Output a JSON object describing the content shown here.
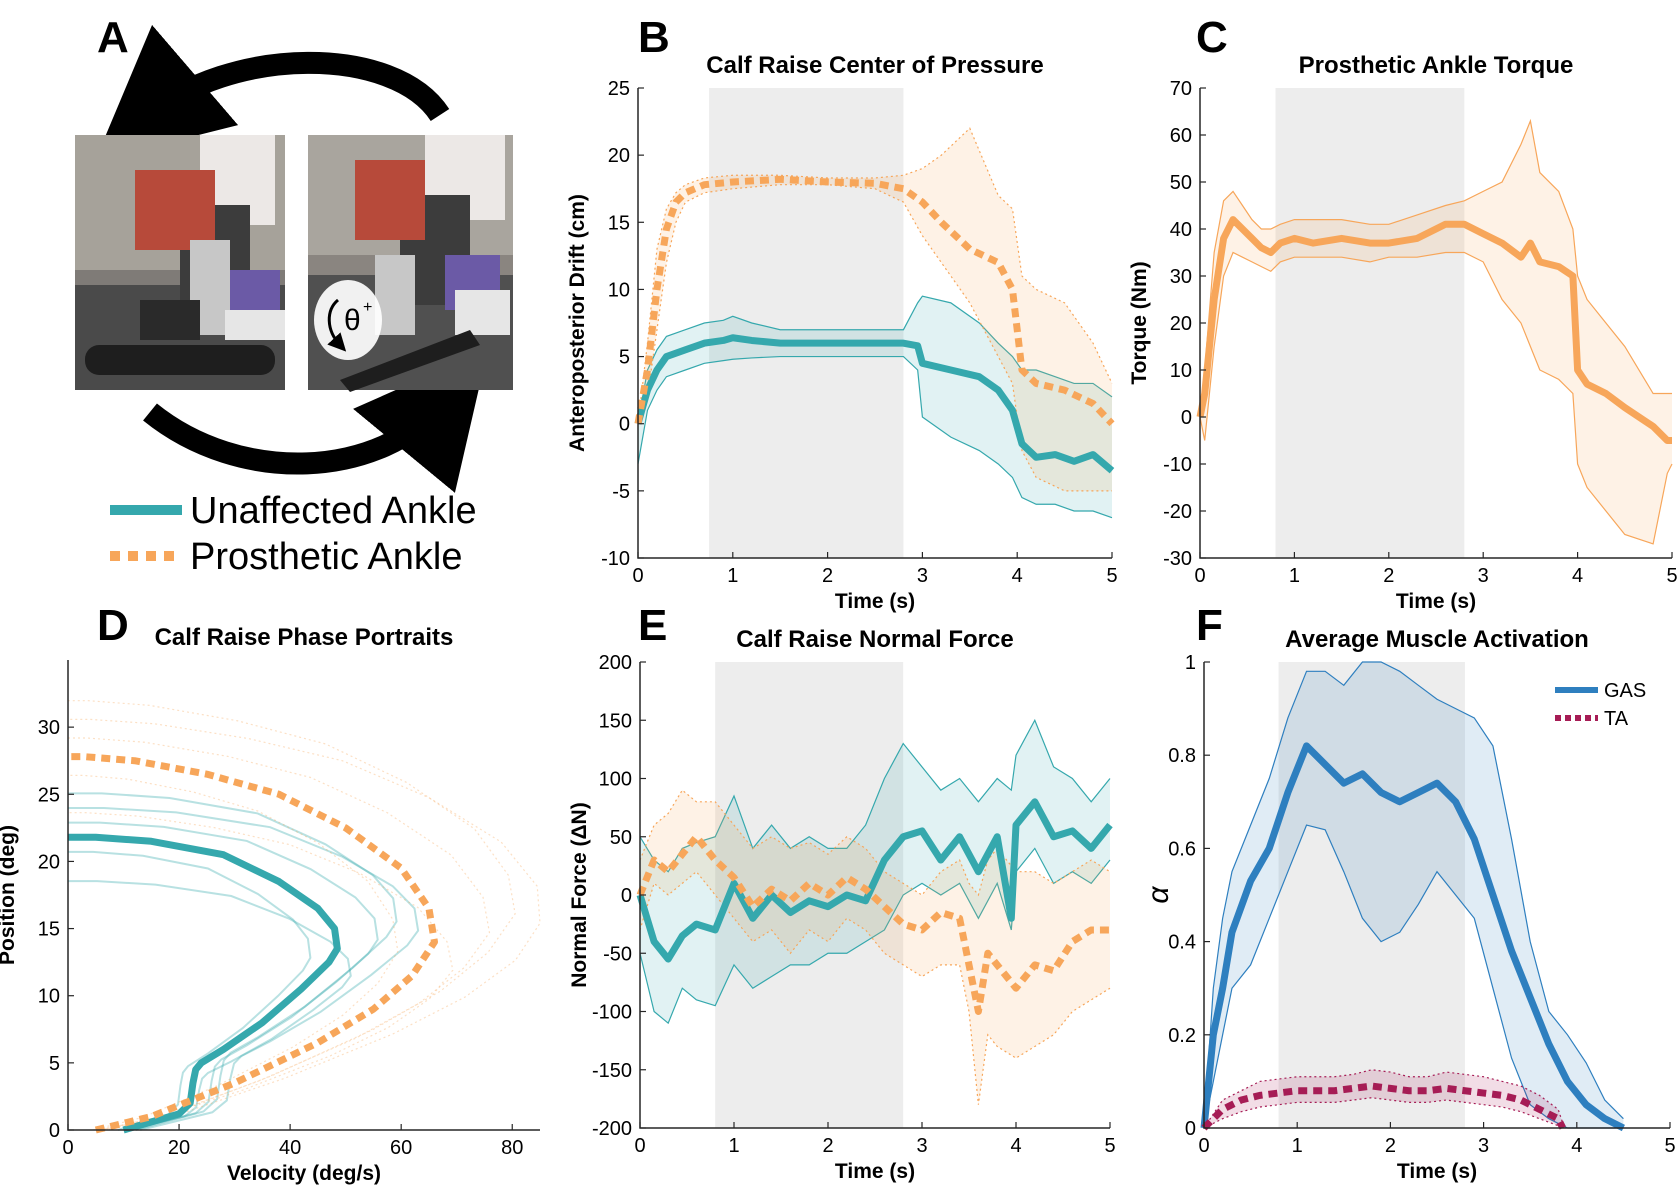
{
  "panels": {
    "A": {
      "letter": "A",
      "angle_label": "θ",
      "angle_sup": "+",
      "legend": [
        "Unaffected Ankle",
        "Prosthetic Ankle"
      ]
    },
    "B": {
      "letter": "B"
    },
    "C": {
      "letter": "C"
    },
    "D": {
      "letter": "D"
    },
    "E": {
      "letter": "E"
    },
    "F": {
      "letter": "F"
    }
  },
  "colors": {
    "unaffected": "#35a8ad",
    "prosthetic": "#f7a65a",
    "gas": "#2e7fbf",
    "ta": "#a61c55",
    "shade": "#ededed"
  },
  "chart_data": [
    {
      "id": "B",
      "type": "line",
      "title": "Calf Raise Center of Pressure",
      "xlabel": "Time (s)",
      "ylabel": "Anteroposterior Drift (cm)",
      "xlim": [
        0,
        5
      ],
      "ylim": [
        -10,
        25
      ],
      "xticks": [
        0,
        1,
        2,
        3,
        4,
        5
      ],
      "yticks": [
        -10,
        -5,
        0,
        5,
        10,
        15,
        20,
        25
      ],
      "shaded_x": [
        0.75,
        2.8
      ],
      "series": [
        {
          "key": "unaffected",
          "style": "solid",
          "x": [
            0,
            0.1,
            0.2,
            0.3,
            0.5,
            0.7,
            0.9,
            1.0,
            1.2,
            1.5,
            2.0,
            2.5,
            2.8,
            2.95,
            3.0,
            3.3,
            3.6,
            3.8,
            3.95,
            4.05,
            4.2,
            4.4,
            4.6,
            4.8,
            5.0
          ],
          "y": [
            0,
            2.5,
            4.0,
            5.0,
            5.5,
            6.0,
            6.2,
            6.4,
            6.2,
            6.0,
            6.0,
            6.0,
            6.0,
            5.8,
            4.5,
            4.0,
            3.5,
            2.5,
            1.0,
            -1.5,
            -2.5,
            -2.3,
            -2.8,
            -2.3,
            -3.5
          ],
          "upper": [
            0,
            4.0,
            5.5,
            6.5,
            7.0,
            7.5,
            7.7,
            8.0,
            7.5,
            7.0,
            7.0,
            7.0,
            7.0,
            9.0,
            9.5,
            9.0,
            7.5,
            6.0,
            5.0,
            4.0,
            4.0,
            3.5,
            3.0,
            3.0,
            2.0
          ],
          "lower": [
            -3,
            1.0,
            2.5,
            3.5,
            4.0,
            4.5,
            4.7,
            4.8,
            4.9,
            5.0,
            5.0,
            5.0,
            5.0,
            4.0,
            0.5,
            -1.0,
            -2.0,
            -3.0,
            -4.0,
            -5.5,
            -6.0,
            -6.0,
            -6.5,
            -6.5,
            -7.0
          ]
        },
        {
          "key": "prosthetic",
          "style": "dashed",
          "x": [
            0,
            0.1,
            0.2,
            0.3,
            0.4,
            0.5,
            0.7,
            1.0,
            1.5,
            2.0,
            2.5,
            2.8,
            3.0,
            3.2,
            3.5,
            3.8,
            3.95,
            4.05,
            4.2,
            4.5,
            4.8,
            5.0
          ],
          "y": [
            0,
            4.0,
            10.0,
            14.5,
            16.5,
            17.2,
            17.8,
            18.0,
            18.2,
            18.0,
            17.9,
            17.5,
            16.5,
            15.0,
            13.0,
            12.0,
            10.0,
            4.0,
            3.0,
            2.5,
            1.5,
            0
          ],
          "upper": [
            0,
            6.0,
            13.0,
            16.0,
            17.2,
            17.8,
            18.3,
            18.5,
            18.5,
            18.3,
            18.3,
            18.5,
            19.0,
            20.0,
            22.0,
            17.0,
            16.0,
            11.0,
            10.0,
            9.0,
            6.0,
            3.0
          ],
          "lower": [
            0,
            2.0,
            7.0,
            12.0,
            15.0,
            16.5,
            17.2,
            17.5,
            17.8,
            17.8,
            17.5,
            16.5,
            14.0,
            12.0,
            9.0,
            5.0,
            3.0,
            -2.0,
            -4.0,
            -5.0,
            -5.0,
            -5.0
          ]
        }
      ]
    },
    {
      "id": "C",
      "type": "line",
      "title": "Prosthetic Ankle Torque",
      "xlabel": "Time (s)",
      "ylabel": "Torque (Nm)",
      "xlim": [
        0,
        5
      ],
      "ylim": [
        -30,
        70
      ],
      "xticks": [
        0,
        1,
        2,
        3,
        4,
        5
      ],
      "yticks": [
        -30,
        -20,
        -10,
        0,
        10,
        20,
        30,
        40,
        50,
        60,
        70
      ],
      "shaded_x": [
        0.8,
        2.8
      ],
      "series": [
        {
          "key": "prosthetic",
          "style": "solid",
          "x": [
            0,
            0.05,
            0.15,
            0.25,
            0.35,
            0.45,
            0.55,
            0.65,
            0.75,
            0.85,
            1.0,
            1.2,
            1.5,
            1.8,
            2.0,
            2.3,
            2.6,
            2.8,
            3.0,
            3.2,
            3.4,
            3.5,
            3.6,
            3.8,
            3.95,
            4.0,
            4.1,
            4.3,
            4.5,
            4.8,
            4.95,
            5.0
          ],
          "y": [
            0,
            5,
            25,
            38,
            42,
            40,
            38,
            36,
            35,
            37,
            38,
            37,
            38,
            37,
            37,
            38,
            41,
            41,
            39,
            37,
            34,
            37,
            33,
            32,
            30,
            10,
            7,
            5,
            2,
            -2,
            -5,
            -5
          ],
          "upper": [
            0,
            10,
            35,
            46,
            48,
            45,
            42,
            40,
            40,
            41,
            42,
            42,
            42,
            41,
            41,
            43,
            45,
            46,
            48,
            50,
            58,
            63,
            52,
            48,
            40,
            30,
            25,
            20,
            15,
            5,
            5,
            5
          ],
          "lower": [
            0,
            -5,
            15,
            30,
            35,
            34,
            33,
            32,
            31,
            33,
            34,
            34,
            34,
            33,
            34,
            34,
            35,
            35,
            33,
            25,
            20,
            15,
            10,
            8,
            5,
            -10,
            -15,
            -20,
            -25,
            -27,
            -12,
            -10
          ]
        }
      ]
    },
    {
      "id": "D",
      "type": "line",
      "title": "Calf Raise Phase Portraits",
      "xlabel": "Velocity (deg/s)",
      "ylabel": "Position (deg)",
      "xlim": [
        0,
        85
      ],
      "ylim": [
        0,
        35
      ],
      "xticks": [
        0,
        20,
        40,
        60,
        80
      ],
      "yticks": [
        0,
        5,
        10,
        15,
        20,
        25,
        30
      ],
      "series": [
        {
          "key": "unaffected",
          "style": "solid",
          "x": [
            10,
            20,
            22,
            22.5,
            23,
            24,
            28,
            35,
            42,
            47,
            48.5,
            48,
            45,
            38,
            28,
            15,
            5,
            0
          ],
          "y": [
            0,
            1.2,
            2.0,
            3.5,
            4.5,
            5.0,
            6.0,
            8.0,
            10.5,
            12.5,
            13.5,
            15.0,
            16.5,
            18.5,
            20.5,
            21.5,
            21.8,
            21.8
          ]
        },
        {
          "key": "prosthetic",
          "style": "dashed",
          "x": [
            5,
            15,
            30,
            45,
            55,
            62,
            66,
            65,
            60,
            50,
            38,
            25,
            12,
            3,
            0
          ],
          "y": [
            0,
            1.0,
            3.5,
            6.5,
            9.0,
            11.5,
            14.0,
            16.5,
            19.5,
            22.5,
            25.0,
            26.5,
            27.5,
            27.8,
            27.8
          ]
        }
      ]
    },
    {
      "id": "E",
      "type": "line",
      "title": "Calf Raise Normal Force",
      "xlabel": "Time (s)",
      "ylabel": "Normal Force (ΔN)",
      "xlim": [
        0,
        5
      ],
      "ylim": [
        -200,
        200
      ],
      "xticks": [
        0,
        1,
        2,
        3,
        4,
        5
      ],
      "yticks": [
        -200,
        -150,
        -100,
        -50,
        0,
        50,
        100,
        150,
        200
      ],
      "shaded_x": [
        0.8,
        2.8
      ],
      "series": [
        {
          "key": "unaffected",
          "style": "solid",
          "x": [
            0,
            0.15,
            0.3,
            0.45,
            0.6,
            0.8,
            1.0,
            1.2,
            1.4,
            1.6,
            1.8,
            2.0,
            2.2,
            2.4,
            2.6,
            2.8,
            3.0,
            3.2,
            3.4,
            3.6,
            3.8,
            3.95,
            4.0,
            4.2,
            4.4,
            4.6,
            4.8,
            5.0
          ],
          "y": [
            0,
            -40,
            -55,
            -35,
            -25,
            -30,
            10,
            -20,
            0,
            -15,
            -5,
            -10,
            0,
            -5,
            30,
            50,
            55,
            30,
            50,
            20,
            50,
            -20,
            60,
            80,
            50,
            55,
            40,
            60
          ],
          "upper": [
            50,
            30,
            20,
            40,
            45,
            50,
            85,
            40,
            60,
            40,
            50,
            40,
            40,
            60,
            100,
            130,
            110,
            90,
            100,
            80,
            100,
            90,
            120,
            150,
            110,
            100,
            80,
            100
          ],
          "lower": [
            -50,
            -100,
            -110,
            -80,
            -90,
            -95,
            -60,
            -80,
            -70,
            -60,
            -60,
            -50,
            -50,
            -40,
            -30,
            0,
            10,
            0,
            10,
            -20,
            10,
            -30,
            20,
            40,
            10,
            20,
            10,
            30
          ]
        },
        {
          "key": "prosthetic",
          "style": "dashed",
          "x": [
            0,
            0.15,
            0.3,
            0.45,
            0.6,
            0.8,
            1.0,
            1.2,
            1.4,
            1.6,
            1.8,
            2.0,
            2.2,
            2.4,
            2.6,
            2.8,
            3.0,
            3.2,
            3.4,
            3.5,
            3.6,
            3.7,
            3.8,
            4.0,
            4.2,
            4.4,
            4.6,
            4.8,
            5.0
          ],
          "y": [
            0,
            30,
            20,
            35,
            50,
            30,
            15,
            -10,
            5,
            -5,
            10,
            0,
            15,
            5,
            -10,
            -25,
            -30,
            -15,
            -20,
            -60,
            -100,
            -50,
            -60,
            -80,
            -60,
            -65,
            -40,
            -30,
            -30
          ],
          "upper": [
            30,
            60,
            70,
            90,
            80,
            80,
            60,
            40,
            50,
            40,
            45,
            35,
            50,
            40,
            20,
            10,
            0,
            20,
            30,
            10,
            0,
            30,
            40,
            20,
            20,
            10,
            20,
            30,
            20
          ],
          "lower": [
            -30,
            10,
            0,
            10,
            20,
            0,
            -20,
            -40,
            -30,
            -50,
            -30,
            -40,
            -20,
            -30,
            -50,
            -60,
            -70,
            -60,
            -60,
            -100,
            -180,
            -120,
            -130,
            -140,
            -130,
            -120,
            -100,
            -90,
            -80
          ]
        }
      ]
    },
    {
      "id": "F",
      "type": "line",
      "title": "Average Muscle Activation",
      "xlabel": "Time (s)",
      "ylabel": "α",
      "xlim": [
        0,
        5
      ],
      "ylim": [
        0,
        1
      ],
      "xticks": [
        0,
        1,
        2,
        3,
        4,
        5
      ],
      "yticks": [
        0,
        0.2,
        0.4,
        0.6,
        0.8,
        1
      ],
      "shaded_x": [
        0.8,
        2.8
      ],
      "legend": [
        "GAS",
        "TA"
      ],
      "legend_position": "top-right",
      "series": [
        {
          "name": "GAS",
          "key": "gas",
          "style": "solid",
          "x": [
            0,
            0.1,
            0.2,
            0.3,
            0.5,
            0.7,
            0.9,
            1.1,
            1.3,
            1.5,
            1.7,
            1.9,
            2.1,
            2.3,
            2.5,
            2.7,
            2.9,
            3.1,
            3.3,
            3.5,
            3.7,
            3.9,
            4.1,
            4.3,
            4.5
          ],
          "y": [
            0,
            0.2,
            0.3,
            0.42,
            0.53,
            0.6,
            0.72,
            0.82,
            0.78,
            0.74,
            0.76,
            0.72,
            0.7,
            0.72,
            0.74,
            0.7,
            0.62,
            0.5,
            0.38,
            0.28,
            0.18,
            0.1,
            0.05,
            0.02,
            0
          ],
          "upper": [
            0,
            0.3,
            0.45,
            0.55,
            0.65,
            0.75,
            0.88,
            0.98,
            0.98,
            0.95,
            1.0,
            1.0,
            0.98,
            0.95,
            0.92,
            0.9,
            0.88,
            0.82,
            0.62,
            0.4,
            0.25,
            0.2,
            0.14,
            0.06,
            0.02
          ],
          "lower": [
            0,
            0.1,
            0.2,
            0.3,
            0.35,
            0.45,
            0.55,
            0.65,
            0.64,
            0.55,
            0.45,
            0.4,
            0.42,
            0.48,
            0.55,
            0.5,
            0.45,
            0.3,
            0.15,
            0.05,
            0.02,
            0,
            0,
            0,
            0
          ]
        },
        {
          "name": "TA",
          "key": "ta",
          "style": "dashed",
          "x": [
            0,
            0.2,
            0.4,
            0.6,
            0.8,
            1.0,
            1.2,
            1.4,
            1.6,
            1.8,
            2.0,
            2.2,
            2.4,
            2.6,
            2.8,
            3.0,
            3.2,
            3.4,
            3.6,
            3.8,
            3.85
          ],
          "y": [
            0,
            0.04,
            0.06,
            0.07,
            0.075,
            0.08,
            0.08,
            0.08,
            0.085,
            0.09,
            0.085,
            0.08,
            0.08,
            0.085,
            0.08,
            0.075,
            0.07,
            0.06,
            0.04,
            0.02,
            0
          ],
          "upper": [
            0,
            0.06,
            0.08,
            0.1,
            0.105,
            0.11,
            0.11,
            0.11,
            0.115,
            0.125,
            0.12,
            0.11,
            0.11,
            0.12,
            0.115,
            0.11,
            0.1,
            0.09,
            0.07,
            0.04,
            0.01
          ],
          "lower": [
            0,
            0.02,
            0.035,
            0.045,
            0.05,
            0.055,
            0.055,
            0.055,
            0.06,
            0.065,
            0.06,
            0.055,
            0.055,
            0.06,
            0.055,
            0.05,
            0.045,
            0.035,
            0.02,
            0.005,
            0
          ]
        }
      ]
    }
  ]
}
